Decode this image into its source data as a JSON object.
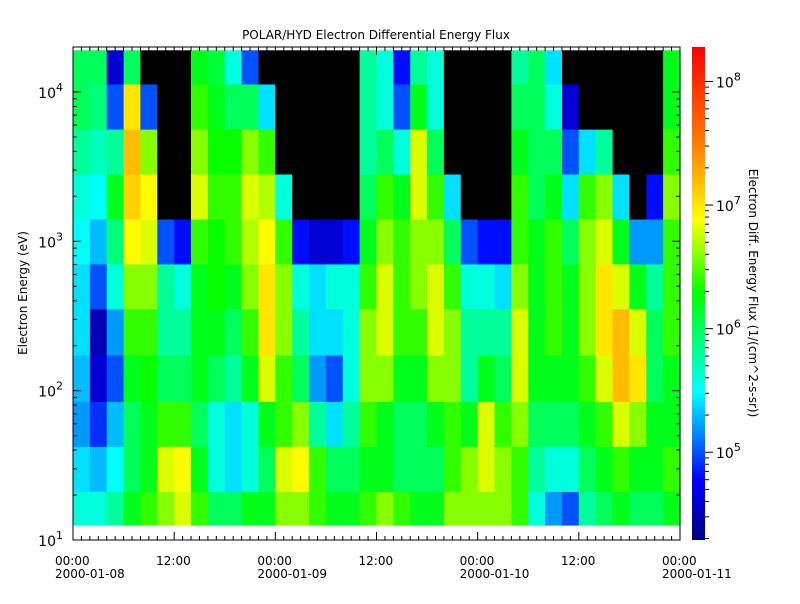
{
  "chart_data": {
    "type": "heatmap",
    "title": "POLAR/HYD  Electron Differential Energy Flux",
    "ylabel": "Electron Energy (eV)",
    "colorbar_label": "Electron Diff. Energy Flux (1/(cm^2-s-sr))",
    "y_scale": "log",
    "ylim": [
      10,
      20000
    ],
    "y_ticks": [
      {
        "exp": "1"
      },
      {
        "exp": "2"
      },
      {
        "exp": "3"
      },
      {
        "exp": "4"
      }
    ],
    "color_scale": "log",
    "color_range": [
      19500,
      190000000
    ],
    "colorbar_ticks": [
      {
        "exp": "5"
      },
      {
        "exp": "6"
      },
      {
        "exp": "7"
      },
      {
        "exp": "8"
      }
    ],
    "colormap": [
      "#000080",
      "#0000ff",
      "#00ffff",
      "#00ff00",
      "#ffff00",
      "#ff8000",
      "#ff0000"
    ],
    "missing_color": "#000000",
    "x_ticks": [
      {
        "time": "00:00",
        "date": "2000-01-08"
      },
      {
        "time": "12:00",
        "date": ""
      },
      {
        "time": "00:00",
        "date": "2000-01-09"
      },
      {
        "time": "12:00",
        "date": ""
      },
      {
        "time": "00:00",
        "date": "2000-01-10"
      },
      {
        "time": "12:00",
        "date": ""
      },
      {
        "time": "00:00",
        "date": "2000-01-11"
      }
    ],
    "xlim": [
      "2000-01-08 00:00",
      "2000-01-11 00:00"
    ],
    "time_bin_hours": 2,
    "energies_eV": [
      15,
      30,
      60,
      120,
      250,
      500,
      1000,
      2000,
      4000,
      8000,
      16000
    ],
    "log10_flux": [
      [
        5.6,
        5.4,
        5.2,
        5.3,
        5.4,
        5.4,
        5.5,
        5.6,
        5.8,
        6.0,
        6.0
      ],
      [
        5.6,
        5.3,
        4.9,
        4.6,
        4.5,
        5.0,
        5.3,
        5.5,
        5.7,
        5.9,
        6.0
      ],
      [
        5.8,
        5.5,
        5.3,
        5.0,
        5.2,
        5.6,
        5.9,
        6.2,
        5.8,
        5.0,
        4.6
      ],
      [
        6.2,
        6.0,
        6.0,
        6.2,
        6.4,
        6.6,
        6.9,
        7.1,
        7.2,
        7.0,
        6.0
      ],
      [
        6.4,
        6.2,
        6.2,
        6.3,
        6.4,
        6.6,
        6.8,
        6.9,
        6.6,
        5.0,
        null
      ],
      [
        6.6,
        6.8,
        6.4,
        6.0,
        5.8,
        5.8,
        5.0,
        null,
        null,
        null,
        null
      ],
      [
        6.8,
        6.9,
        6.4,
        6.0,
        5.8,
        5.6,
        4.8,
        null,
        null,
        null,
        null
      ],
      [
        6.4,
        6.2,
        6.0,
        6.2,
        6.2,
        6.2,
        6.4,
        6.8,
        6.6,
        6.4,
        6.2
      ],
      [
        6.0,
        5.6,
        5.6,
        6.0,
        6.2,
        6.3,
        6.3,
        6.4,
        6.3,
        6.2,
        6.1
      ],
      [
        6.0,
        5.4,
        5.4,
        5.8,
        6.0,
        6.2,
        6.4,
        6.4,
        6.3,
        6.0,
        5.6
      ],
      [
        6.2,
        5.6,
        5.6,
        6.2,
        6.4,
        6.6,
        6.7,
        6.8,
        6.6,
        6.0,
        5.0
      ],
      [
        6.2,
        6.0,
        6.2,
        6.8,
        7.0,
        7.0,
        6.9,
        6.7,
        6.4,
        5.4,
        null
      ],
      [
        6.6,
        6.8,
        6.4,
        6.4,
        6.6,
        6.6,
        6.4,
        5.6,
        null,
        null,
        null
      ],
      [
        6.6,
        6.9,
        6.6,
        6.0,
        5.8,
        5.6,
        4.8,
        null,
        null,
        null,
        null
      ],
      [
        6.4,
        6.4,
        5.8,
        5.2,
        5.4,
        5.4,
        4.6,
        null,
        null,
        null,
        null
      ],
      [
        6.2,
        6.0,
        5.4,
        5.0,
        5.4,
        5.6,
        4.6,
        null,
        null,
        null,
        null
      ],
      [
        6.2,
        6.0,
        5.8,
        5.6,
        5.6,
        5.6,
        4.8,
        null,
        null,
        null,
        null
      ],
      [
        6.4,
        6.2,
        6.4,
        6.6,
        6.6,
        6.4,
        6.2,
        6.0,
        5.8,
        5.8,
        5.8
      ],
      [
        6.6,
        6.2,
        6.2,
        6.6,
        6.8,
        6.8,
        6.6,
        6.4,
        6.0,
        5.6,
        5.6
      ],
      [
        6.4,
        6.0,
        6.0,
        6.2,
        6.4,
        6.4,
        6.4,
        6.2,
        5.6,
        5.0,
        4.8
      ],
      [
        6.2,
        6.0,
        6.0,
        6.2,
        6.4,
        6.6,
        6.6,
        6.8,
        6.8,
        6.2,
        5.8
      ],
      [
        6.2,
        6.0,
        6.2,
        6.6,
        6.8,
        6.8,
        6.6,
        6.4,
        6.0,
        5.6,
        5.6
      ],
      [
        6.6,
        6.4,
        6.4,
        6.6,
        6.6,
        6.4,
        6.0,
        5.4,
        null,
        null,
        null
      ],
      [
        6.6,
        6.6,
        6.2,
        5.8,
        5.8,
        5.6,
        5.0,
        null,
        null,
        null,
        null
      ],
      [
        6.6,
        6.8,
        6.8,
        6.2,
        5.8,
        5.6,
        4.8,
        null,
        null,
        null,
        null
      ],
      [
        6.6,
        6.6,
        6.4,
        6.0,
        5.8,
        5.4,
        4.8,
        null,
        null,
        null,
        null
      ],
      [
        6.4,
        6.4,
        6.6,
        6.8,
        6.8,
        6.6,
        6.4,
        6.4,
        6.2,
        6.0,
        5.8
      ],
      [
        5.6,
        5.8,
        6.0,
        6.2,
        6.2,
        6.2,
        6.2,
        6.0,
        6.0,
        6.0,
        6.0
      ],
      [
        5.2,
        5.6,
        6.0,
        6.2,
        6.4,
        6.4,
        6.4,
        6.2,
        6.0,
        5.6,
        5.4
      ],
      [
        5.0,
        5.6,
        6.0,
        6.2,
        6.2,
        6.2,
        6.0,
        5.4,
        5.0,
        4.6,
        null
      ],
      [
        5.8,
        6.0,
        6.2,
        6.4,
        6.6,
        6.6,
        6.6,
        6.4,
        5.4,
        null,
        null
      ],
      [
        6.0,
        6.2,
        6.4,
        6.8,
        7.0,
        7.0,
        6.8,
        6.6,
        5.8,
        null,
        null
      ],
      [
        6.2,
        6.4,
        6.8,
        7.2,
        7.2,
        6.8,
        6.2,
        5.4,
        null,
        null,
        null
      ],
      [
        6.0,
        6.2,
        6.6,
        7.0,
        6.8,
        6.2,
        5.2,
        null,
        null,
        null,
        null
      ],
      [
        6.0,
        6.2,
        6.2,
        6.0,
        6.0,
        5.8,
        5.2,
        4.8,
        null,
        null,
        null
      ],
      [
        6.2,
        6.4,
        6.2,
        6.2,
        6.4,
        6.4,
        6.4,
        6.6,
        6.4,
        6.2,
        6.2
      ]
    ]
  }
}
